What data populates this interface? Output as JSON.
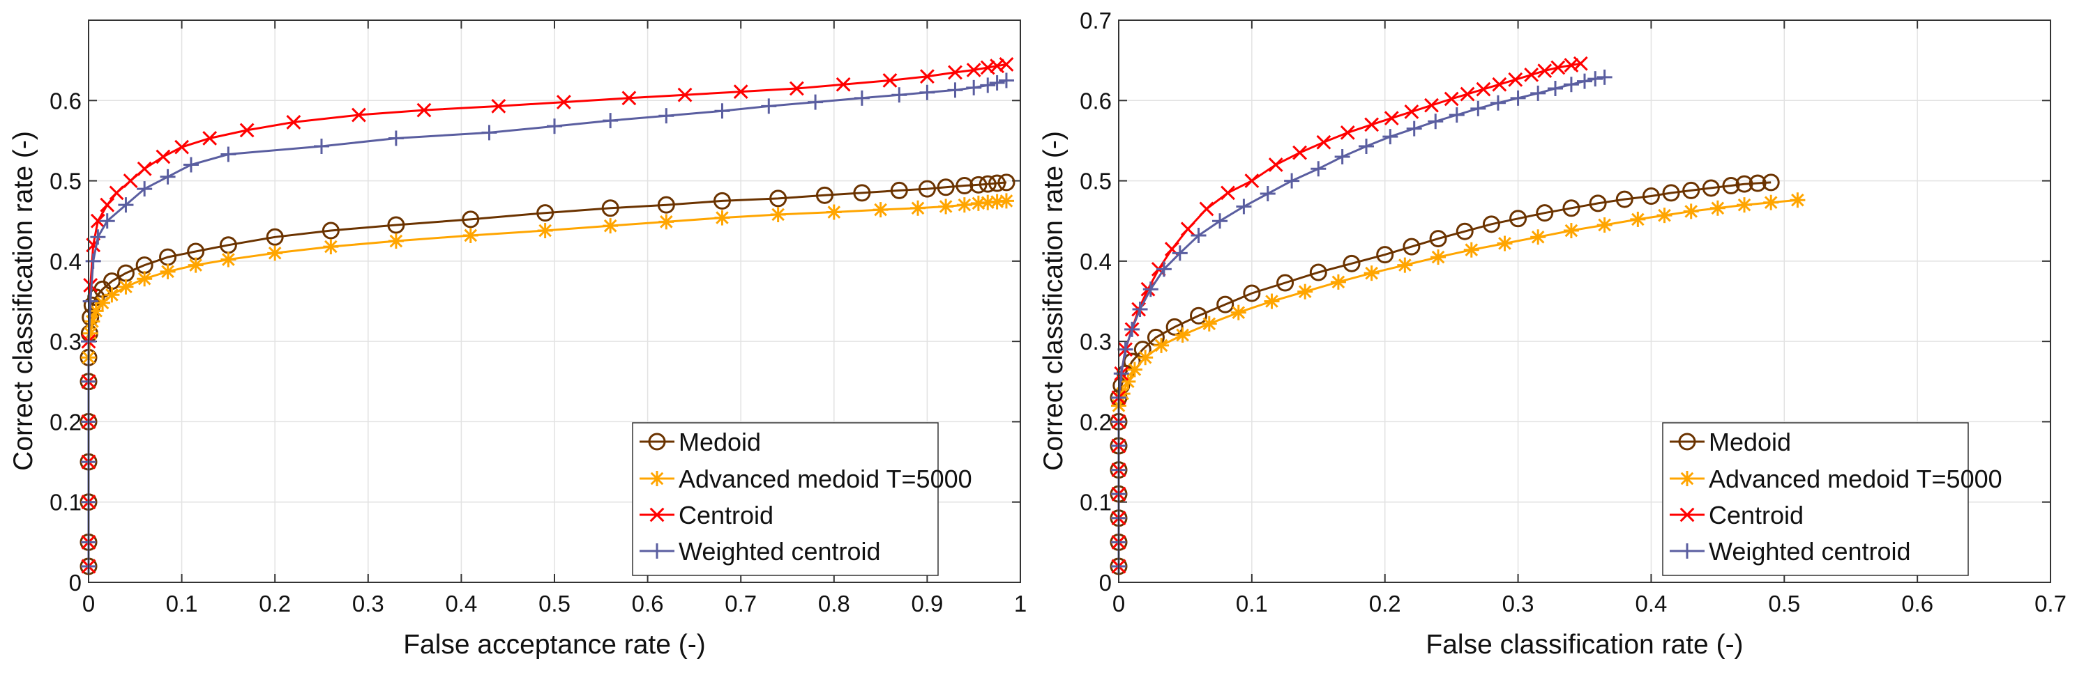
{
  "chart_data": [
    {
      "type": "line",
      "xlabel": "False acceptance rate (-)",
      "ylabel": "Correct classification rate (-)",
      "xlim": [
        0,
        1
      ],
      "ylim": [
        0,
        0.7
      ],
      "xticks": [
        0,
        0.1,
        0.2,
        0.3,
        0.4,
        0.5,
        0.6,
        0.7,
        0.8,
        0.9,
        1
      ],
      "xtick_labels": [
        "0",
        "0.1",
        "0.2",
        "0.3",
        "0.4",
        "0.5",
        "0.6",
        "0.7",
        "0.8",
        "0.9",
        "1"
      ],
      "yticks": [
        0,
        0.1,
        0.2,
        0.3,
        0.4,
        0.5,
        0.6
      ],
      "ytick_labels": [
        "0",
        "0.1",
        "0.2",
        "0.3",
        "0.4",
        "0.5",
        "0.6"
      ],
      "grid": true,
      "legend_position": "bottom-right",
      "series": [
        {
          "name": "Medoid",
          "color": "#6b3300",
          "marker": "circle",
          "x": [
            0,
            0,
            0,
            0,
            0,
            0,
            0,
            0.001,
            0.002,
            0.004,
            0.008,
            0.015,
            0.025,
            0.04,
            0.06,
            0.085,
            0.115,
            0.15,
            0.2,
            0.26,
            0.33,
            0.41,
            0.49,
            0.56,
            0.62,
            0.68,
            0.74,
            0.79,
            0.83,
            0.87,
            0.9,
            0.92,
            0.94,
            0.955,
            0.965,
            0.975,
            0.985
          ],
          "y": [
            0.02,
            0.05,
            0.1,
            0.15,
            0.2,
            0.25,
            0.28,
            0.31,
            0.33,
            0.345,
            0.355,
            0.365,
            0.375,
            0.385,
            0.395,
            0.405,
            0.412,
            0.42,
            0.43,
            0.438,
            0.445,
            0.452,
            0.46,
            0.466,
            0.47,
            0.475,
            0.478,
            0.482,
            0.485,
            0.488,
            0.49,
            0.492,
            0.494,
            0.495,
            0.496,
            0.497,
            0.498
          ]
        },
        {
          "name": "Advanced medoid T=5000",
          "color": "#ffa500",
          "marker": "asterisk",
          "x": [
            0,
            0,
            0,
            0,
            0,
            0,
            0,
            0.002,
            0.004,
            0.008,
            0.015,
            0.025,
            0.04,
            0.06,
            0.085,
            0.115,
            0.15,
            0.2,
            0.26,
            0.33,
            0.41,
            0.49,
            0.56,
            0.62,
            0.68,
            0.74,
            0.8,
            0.85,
            0.89,
            0.92,
            0.94,
            0.955,
            0.965,
            0.975,
            0.985
          ],
          "y": [
            0.02,
            0.05,
            0.1,
            0.15,
            0.2,
            0.25,
            0.28,
            0.31,
            0.325,
            0.338,
            0.348,
            0.358,
            0.368,
            0.378,
            0.387,
            0.395,
            0.402,
            0.41,
            0.418,
            0.425,
            0.432,
            0.438,
            0.444,
            0.449,
            0.454,
            0.458,
            0.461,
            0.464,
            0.466,
            0.468,
            0.47,
            0.472,
            0.473,
            0.474,
            0.475
          ]
        },
        {
          "name": "Centroid",
          "color": "#ff0000",
          "marker": "x",
          "x": [
            0,
            0,
            0,
            0,
            0,
            0,
            0,
            0.002,
            0.005,
            0.01,
            0.02,
            0.03,
            0.045,
            0.06,
            0.08,
            0.1,
            0.13,
            0.17,
            0.22,
            0.29,
            0.36,
            0.44,
            0.51,
            0.58,
            0.64,
            0.7,
            0.76,
            0.81,
            0.86,
            0.9,
            0.93,
            0.95,
            0.965,
            0.975,
            0.985
          ],
          "y": [
            0.02,
            0.05,
            0.1,
            0.15,
            0.2,
            0.25,
            0.3,
            0.37,
            0.42,
            0.45,
            0.47,
            0.485,
            0.5,
            0.515,
            0.53,
            0.542,
            0.553,
            0.563,
            0.573,
            0.582,
            0.588,
            0.593,
            0.598,
            0.603,
            0.607,
            0.611,
            0.615,
            0.62,
            0.625,
            0.63,
            0.635,
            0.638,
            0.641,
            0.643,
            0.645
          ]
        },
        {
          "name": "Weighted centroid",
          "color": "#5a5ea0",
          "marker": "plus",
          "x": [
            0,
            0,
            0,
            0,
            0,
            0,
            0,
            0.002,
            0.005,
            0.01,
            0.02,
            0.04,
            0.06,
            0.085,
            0.11,
            0.15,
            0.25,
            0.33,
            0.43,
            0.5,
            0.56,
            0.62,
            0.68,
            0.73,
            0.78,
            0.83,
            0.87,
            0.9,
            0.93,
            0.95,
            0.965,
            0.975,
            0.985
          ],
          "y": [
            0.02,
            0.05,
            0.1,
            0.15,
            0.2,
            0.25,
            0.3,
            0.35,
            0.4,
            0.43,
            0.45,
            0.47,
            0.49,
            0.505,
            0.52,
            0.533,
            0.543,
            0.553,
            0.56,
            0.568,
            0.575,
            0.581,
            0.587,
            0.593,
            0.598,
            0.603,
            0.607,
            0.61,
            0.613,
            0.616,
            0.619,
            0.622,
            0.625
          ]
        }
      ]
    },
    {
      "type": "line",
      "xlabel": "False classification rate (-)",
      "ylabel": "Correct classification rate (-)",
      "xlim": [
        0,
        0.7
      ],
      "ylim": [
        0,
        0.7
      ],
      "xticks": [
        0,
        0.1,
        0.2,
        0.3,
        0.4,
        0.5,
        0.6,
        0.7
      ],
      "xtick_labels": [
        "0",
        "0.1",
        "0.2",
        "0.3",
        "0.4",
        "0.5",
        "0.6",
        "0.7"
      ],
      "yticks": [
        0,
        0.1,
        0.2,
        0.3,
        0.4,
        0.5,
        0.6,
        0.7
      ],
      "ytick_labels": [
        "0",
        "0.1",
        "0.2",
        "0.3",
        "0.4",
        "0.5",
        "0.6",
        "0.7"
      ],
      "grid": true,
      "legend_position": "bottom-right",
      "series": [
        {
          "name": "Medoid",
          "color": "#6b3300",
          "marker": "circle",
          "x": [
            0,
            0,
            0,
            0,
            0,
            0,
            0,
            0,
            0.002,
            0.005,
            0.01,
            0.018,
            0.028,
            0.042,
            0.06,
            0.08,
            0.1,
            0.125,
            0.15,
            0.175,
            0.2,
            0.22,
            0.24,
            0.26,
            0.28,
            0.3,
            0.32,
            0.34,
            0.36,
            0.38,
            0.4,
            0.415,
            0.43,
            0.445,
            0.46,
            0.47,
            0.48,
            0.49
          ],
          "y": [
            0.02,
            0.05,
            0.08,
            0.11,
            0.14,
            0.17,
            0.2,
            0.23,
            0.245,
            0.26,
            0.275,
            0.29,
            0.305,
            0.318,
            0.332,
            0.346,
            0.36,
            0.373,
            0.386,
            0.397,
            0.408,
            0.418,
            0.428,
            0.437,
            0.446,
            0.453,
            0.46,
            0.466,
            0.472,
            0.477,
            0.481,
            0.485,
            0.488,
            0.491,
            0.494,
            0.496,
            0.497,
            0.498
          ]
        },
        {
          "name": "Advanced medoid T=5000",
          "color": "#ffa500",
          "marker": "asterisk",
          "x": [
            0,
            0,
            0,
            0,
            0,
            0,
            0,
            0,
            0.003,
            0.007,
            0.012,
            0.02,
            0.032,
            0.048,
            0.068,
            0.09,
            0.115,
            0.14,
            0.165,
            0.19,
            0.215,
            0.24,
            0.265,
            0.29,
            0.315,
            0.34,
            0.365,
            0.39,
            0.41,
            0.43,
            0.45,
            0.47,
            0.49,
            0.51
          ],
          "y": [
            0.02,
            0.05,
            0.08,
            0.11,
            0.14,
            0.17,
            0.2,
            0.22,
            0.235,
            0.25,
            0.265,
            0.28,
            0.295,
            0.308,
            0.322,
            0.336,
            0.35,
            0.362,
            0.374,
            0.385,
            0.395,
            0.405,
            0.414,
            0.422,
            0.43,
            0.438,
            0.445,
            0.452,
            0.457,
            0.462,
            0.466,
            0.47,
            0.473,
            0.476
          ]
        },
        {
          "name": "Centroid",
          "color": "#ff0000",
          "marker": "x",
          "x": [
            0,
            0,
            0,
            0,
            0,
            0,
            0,
            0,
            0.002,
            0.005,
            0.01,
            0.015,
            0.022,
            0.03,
            0.04,
            0.052,
            0.066,
            0.082,
            0.1,
            0.118,
            0.136,
            0.154,
            0.172,
            0.19,
            0.205,
            0.22,
            0.235,
            0.25,
            0.262,
            0.274,
            0.286,
            0.298,
            0.31,
            0.32,
            0.33,
            0.34,
            0.347
          ],
          "y": [
            0.02,
            0.05,
            0.08,
            0.11,
            0.14,
            0.17,
            0.2,
            0.23,
            0.26,
            0.29,
            0.315,
            0.34,
            0.365,
            0.39,
            0.415,
            0.44,
            0.465,
            0.485,
            0.5,
            0.52,
            0.535,
            0.548,
            0.56,
            0.57,
            0.578,
            0.586,
            0.594,
            0.602,
            0.608,
            0.614,
            0.62,
            0.626,
            0.632,
            0.637,
            0.641,
            0.644,
            0.646
          ]
        },
        {
          "name": "Weighted centroid",
          "color": "#5a5ea0",
          "marker": "plus",
          "x": [
            0,
            0,
            0,
            0,
            0,
            0,
            0,
            0,
            0.002,
            0.005,
            0.01,
            0.016,
            0.024,
            0.034,
            0.046,
            0.06,
            0.076,
            0.094,
            0.112,
            0.13,
            0.15,
            0.168,
            0.186,
            0.204,
            0.222,
            0.238,
            0.254,
            0.27,
            0.285,
            0.3,
            0.315,
            0.328,
            0.34,
            0.35,
            0.358,
            0.365
          ],
          "y": [
            0.02,
            0.05,
            0.08,
            0.11,
            0.14,
            0.17,
            0.2,
            0.23,
            0.26,
            0.29,
            0.315,
            0.34,
            0.365,
            0.39,
            0.41,
            0.432,
            0.45,
            0.468,
            0.484,
            0.5,
            0.515,
            0.53,
            0.543,
            0.555,
            0.565,
            0.574,
            0.582,
            0.59,
            0.597,
            0.603,
            0.609,
            0.615,
            0.62,
            0.624,
            0.627,
            0.629
          ]
        }
      ]
    }
  ]
}
